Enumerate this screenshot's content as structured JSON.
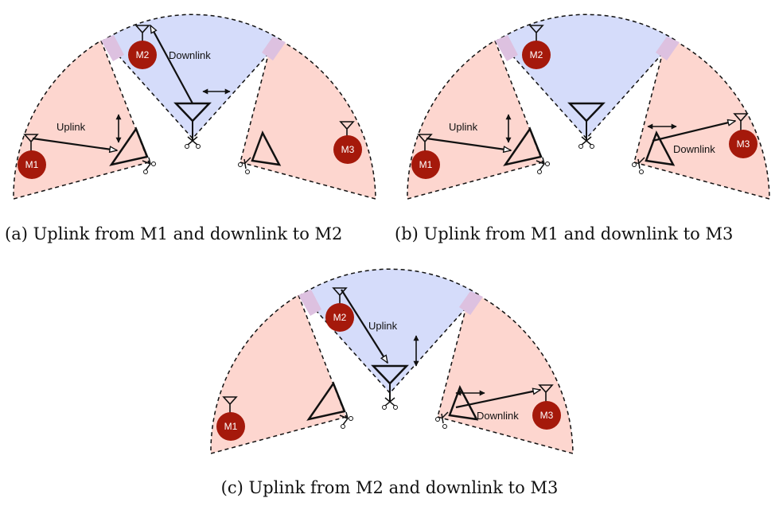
{
  "panels": [
    {
      "id": "a",
      "caption": "(a) Uplink from M1 and downlink to M2",
      "active": "M2",
      "uplink": {
        "label": "Uplink",
        "from": "M1"
      },
      "downlink": {
        "label": "Downlink",
        "to": "M2"
      }
    },
    {
      "id": "b",
      "caption": "(b) Uplink from M1 and downlink to M3",
      "active": "M3",
      "uplink": {
        "label": "Uplink",
        "from": "M1"
      },
      "downlink": {
        "label": "Downlink",
        "to": "M3"
      }
    },
    {
      "id": "c",
      "caption": "(c) Uplink from M2 and downlink to M3",
      "active": "M2",
      "uplink": {
        "label": "Uplink",
        "from": "M2"
      },
      "downlink": {
        "label": "Downlink",
        "to": "M3"
      }
    }
  ],
  "nodes": {
    "m1": "M1",
    "m2": "M2",
    "m3": "M3"
  },
  "colors": {
    "side_sector": "#fdd6cf",
    "center_sector": "#d5dcfa",
    "overlap": "#ddc1e0",
    "mobile": "#a5190b",
    "line": "#111111"
  }
}
